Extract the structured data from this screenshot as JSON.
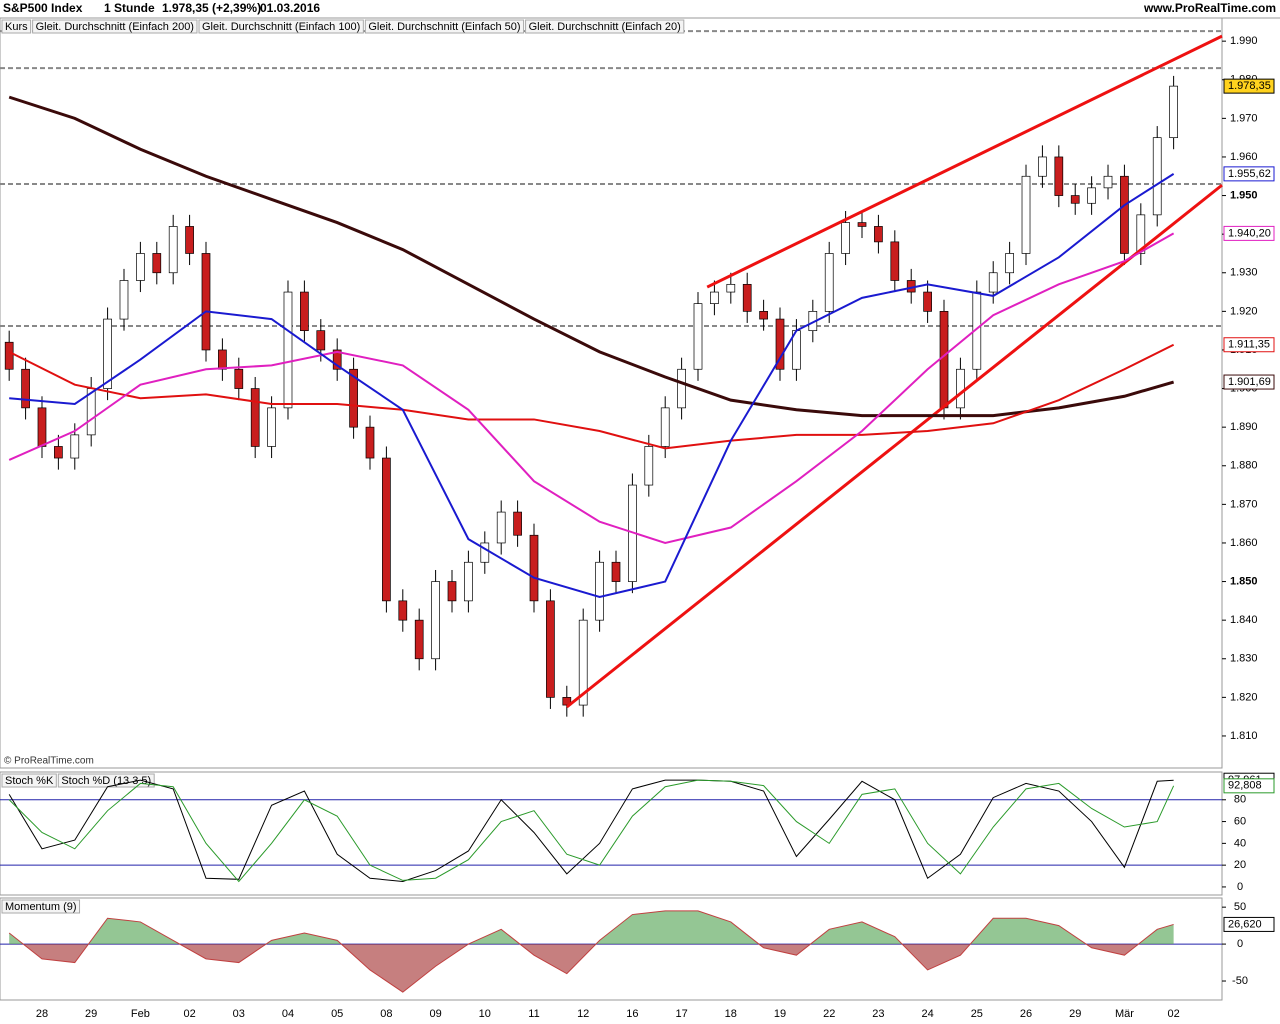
{
  "header": {
    "symbol": "S&P500 Index",
    "interval": "1 Stunde",
    "quote": "1.978,35 (+2,39%)",
    "date": "01.03.2016",
    "site": "www.ProRealTime.com",
    "watermark": "© ProRealTime.com"
  },
  "chart_data": [
    {
      "type": "candlestick",
      "name": "Kurs",
      "color_up": "#ffffff",
      "color_down": "#c81e1e",
      "xlim": [
        -0.56,
        73.95
      ],
      "ylim": [
        1801.7,
        1996
      ],
      "xticks": [
        {
          "value": 2,
          "label": "28"
        },
        {
          "value": 5,
          "label": "29"
        },
        {
          "value": 8,
          "label": "Feb"
        },
        {
          "value": 11,
          "label": "02"
        },
        {
          "value": 14,
          "label": "03"
        },
        {
          "value": 17,
          "label": "04"
        },
        {
          "value": 20,
          "label": "05"
        },
        {
          "value": 23,
          "label": "08"
        },
        {
          "value": 26,
          "label": "09"
        },
        {
          "value": 29,
          "label": "10"
        },
        {
          "value": 32,
          "label": "11"
        },
        {
          "value": 35,
          "label": "12"
        },
        {
          "value": 38,
          "label": "16"
        },
        {
          "value": 41,
          "label": "17"
        },
        {
          "value": 44,
          "label": "18"
        },
        {
          "value": 47,
          "label": "19"
        },
        {
          "value": 50,
          "label": "22"
        },
        {
          "value": 53,
          "label": "23"
        },
        {
          "value": 56,
          "label": "24"
        },
        {
          "value": 59,
          "label": "25"
        },
        {
          "value": 62,
          "label": "26"
        },
        {
          "value": 65,
          "label": "29"
        },
        {
          "value": 68,
          "label": "Mär"
        },
        {
          "value": 71,
          "label": "02"
        }
      ],
      "yticks": [
        {
          "value": 1810,
          "label": "1.810"
        },
        {
          "value": 1820,
          "label": "1.820"
        },
        {
          "value": 1830,
          "label": "1.830"
        },
        {
          "value": 1840,
          "label": "1.840"
        },
        {
          "value": 1850,
          "label": "1.850"
        },
        {
          "value": 1860,
          "label": "1.860"
        },
        {
          "value": 1870,
          "label": "1.870"
        },
        {
          "value": 1880,
          "label": "1.880"
        },
        {
          "value": 1890,
          "label": "1.890"
        },
        {
          "value": 1900,
          "label": "1.900"
        },
        {
          "value": 1910,
          "label": "1.910"
        },
        {
          "value": 1920,
          "label": "1.920"
        },
        {
          "value": 1930,
          "label": "1.930"
        },
        {
          "value": 1940,
          "label": "1.940"
        },
        {
          "value": 1950,
          "label": "1.950"
        },
        {
          "value": 1960,
          "label": "1.960"
        },
        {
          "value": 1970,
          "label": "1.970"
        },
        {
          "value": 1980,
          "label": "1.980"
        },
        {
          "value": 1990,
          "label": "1.990"
        }
      ],
      "open": [
        1912,
        1905,
        1895,
        1885,
        1882,
        1888,
        1900,
        1918,
        1928,
        1935,
        1930,
        1942,
        1935,
        1910,
        1905,
        1900,
        1885,
        1895,
        1925,
        1915,
        1910,
        1905,
        1890,
        1882,
        1845,
        1840,
        1830,
        1850,
        1845,
        1855,
        1860,
        1868,
        1862,
        1845,
        1820,
        1818,
        1840,
        1855,
        1850,
        1875,
        1885,
        1895,
        1905,
        1922,
        1925,
        1927,
        1920,
        1918,
        1905,
        1915,
        1920,
        1935,
        1943,
        1942,
        1938,
        1928,
        1925,
        1920,
        1895,
        1905,
        1925,
        1930,
        1935,
        1955,
        1960,
        1950,
        1948,
        1952,
        1955,
        1935,
        1945,
        1965
      ],
      "high": [
        1915,
        1908,
        1898,
        1888,
        1891,
        1903,
        1921,
        1931,
        1938,
        1938,
        1945,
        1945,
        1938,
        1913,
        1908,
        1903,
        1898,
        1928,
        1928,
        1918,
        1913,
        1908,
        1893,
        1885,
        1848,
        1843,
        1853,
        1853,
        1858,
        1863,
        1871,
        1871,
        1865,
        1848,
        1823,
        1843,
        1858,
        1858,
        1878,
        1888,
        1898,
        1908,
        1925,
        1928,
        1930,
        1930,
        1923,
        1921,
        1918,
        1923,
        1938,
        1946,
        1946,
        1945,
        1941,
        1931,
        1928,
        1923,
        1908,
        1928,
        1933,
        1938,
        1958,
        1963,
        1963,
        1953,
        1955,
        1958,
        1958,
        1948,
        1968,
        1981
      ],
      "low": [
        1902,
        1892,
        1882,
        1879,
        1879,
        1885,
        1897,
        1915,
        1925,
        1927,
        1927,
        1932,
        1907,
        1902,
        1897,
        1882,
        1882,
        1892,
        1912,
        1907,
        1902,
        1887,
        1879,
        1842,
        1837,
        1827,
        1827,
        1842,
        1842,
        1852,
        1857,
        1859,
        1842,
        1817,
        1815,
        1815,
        1837,
        1847,
        1847,
        1872,
        1882,
        1892,
        1902,
        1919,
        1922,
        1917,
        1915,
        1902,
        1902,
        1912,
        1917,
        1932,
        1939,
        1935,
        1925,
        1922,
        1917,
        1892,
        1892,
        1902,
        1922,
        1927,
        1932,
        1952,
        1947,
        1945,
        1945,
        1949,
        1932,
        1932,
        1942,
        1962
      ],
      "close": [
        1905,
        1895,
        1885,
        1882,
        1888,
        1900,
        1918,
        1928,
        1935,
        1930,
        1942,
        1935,
        1910,
        1905,
        1900,
        1885,
        1895,
        1925,
        1915,
        1910,
        1905,
        1890,
        1882,
        1845,
        1840,
        1830,
        1850,
        1845,
        1855,
        1860,
        1868,
        1862,
        1845,
        1820,
        1818,
        1840,
        1855,
        1850,
        1875,
        1885,
        1895,
        1905,
        1922,
        1925,
        1927,
        1920,
        1918,
        1905,
        1915,
        1920,
        1935,
        1943,
        1942,
        1938,
        1928,
        1925,
        1920,
        1895,
        1905,
        1925,
        1930,
        1935,
        1955,
        1960,
        1950,
        1948,
        1952,
        1955,
        1935,
        1945,
        1965,
        1978.35
      ],
      "last_label": "1.978,35",
      "levels": [
        1992.6,
        1983,
        1953,
        1916.2
      ],
      "level_color": "#888888",
      "trendlines": [
        {
          "color": "#ee1111",
          "x": [
            34,
            73.95
          ],
          "values": [
            1817.5,
            1952.7
          ]
        },
        {
          "color": "#ee1111",
          "x": [
            42.56,
            73.95
          ],
          "values": [
            1926.3,
            1991.3
          ]
        }
      ],
      "series_x": [
        0,
        4,
        8,
        12,
        16,
        20,
        24,
        28,
        32,
        36,
        40,
        44,
        48,
        52,
        56,
        60,
        64,
        68,
        71
      ],
      "series": [
        {
          "name": "Gleit. Durchschnitt (Einfach 200)",
          "color": "#3a0a0a",
          "width": 3,
          "values": [
            1975.5,
            1970,
            1962,
            1955,
            1949,
            1943,
            1936,
            1927,
            1918,
            1909.5,
            1903,
            1897,
            1894.5,
            1893,
            1893,
            1893,
            1895,
            1898,
            1901.69
          ],
          "value_label": "1.901,69"
        },
        {
          "name": "Gleit. Durchschnitt (Einfach 100)",
          "color": "#e01010",
          "width": 2,
          "values": [
            1909.5,
            1901,
            1897.5,
            1898.5,
            1896,
            1896,
            1894.5,
            1892,
            1892,
            1889,
            1884.5,
            1886.5,
            1888,
            1888,
            1889,
            1891,
            1897,
            1905,
            1911.35
          ],
          "value_label": "1.911,35"
        },
        {
          "name": "Gleit. Durchschnitt (Einfach 50)",
          "color": "#e020c0",
          "width": 2,
          "values": [
            1881.5,
            1889,
            1901,
            1905,
            1906,
            1909.5,
            1906,
            1894.5,
            1876,
            1865.5,
            1860,
            1864,
            1876,
            1889,
            1905,
            1919,
            1927,
            1933,
            1940.2
          ],
          "value_label": "1.940,20"
        },
        {
          "name": "Gleit. Durchschnitt (Einfach 20)",
          "color": "#1a1ad0",
          "width": 2,
          "values": [
            1897.5,
            1896,
            1907.5,
            1920,
            1918,
            1906,
            1894.5,
            1861,
            1851,
            1846,
            1850,
            1886.5,
            1915,
            1923.5,
            1927,
            1924,
            1934,
            1947.5,
            1955.62
          ],
          "value_label": "1.955,62"
        }
      ]
    },
    {
      "type": "line",
      "xlim": [
        -0.56,
        73.95
      ],
      "ylim": [
        -7.4,
        105.5
      ],
      "yticks": [
        0,
        20,
        40,
        60,
        80
      ],
      "levels": [
        20,
        80
      ],
      "level_color": "#2222aa",
      "x": [
        0,
        2,
        4,
        6,
        8,
        10,
        12,
        14,
        16,
        18,
        20,
        22,
        24,
        26,
        28,
        30,
        32,
        34,
        36,
        38,
        40,
        42,
        44,
        46,
        48,
        50,
        52,
        54,
        56,
        58,
        60,
        62,
        64,
        66,
        68,
        70,
        71
      ],
      "series": [
        {
          "name": "Stoch %K",
          "color": "#000000",
          "width": 1,
          "values": [
            85,
            35,
            43,
            92,
            98,
            90,
            8,
            7,
            75,
            88,
            30,
            8,
            5,
            15,
            33,
            80,
            50,
            12,
            40,
            90,
            98,
            98,
            97,
            88,
            28,
            62,
            97,
            80,
            8,
            30,
            82,
            95,
            88,
            60,
            18,
            97,
            97.961
          ],
          "value_label": "97,961"
        },
        {
          "name": "Stoch %D (13 3 5)",
          "color": "#2a9a2a",
          "width": 1,
          "values": [
            80,
            50,
            35,
            70,
            95,
            92,
            40,
            5,
            40,
            80,
            65,
            20,
            6,
            8,
            25,
            60,
            70,
            30,
            20,
            65,
            92,
            98,
            97,
            93,
            60,
            40,
            85,
            90,
            40,
            12,
            55,
            90,
            95,
            72,
            55,
            60,
            92.808
          ],
          "value_label": "92,808"
        }
      ]
    },
    {
      "type": "area",
      "xlim": [
        -0.56,
        73.95
      ],
      "ylim": [
        -75.7,
        62.4
      ],
      "yticks": [
        50,
        0,
        -50
      ],
      "levels": [
        0
      ],
      "level_color": "#2222aa",
      "fill_up": "#5aa85a",
      "fill_down": "#a83a3a",
      "x": [
        0,
        2,
        4,
        6,
        8,
        10,
        12,
        14,
        16,
        18,
        20,
        22,
        24,
        26,
        28,
        30,
        32,
        34,
        36,
        38,
        40,
        42,
        44,
        46,
        48,
        50,
        52,
        54,
        56,
        58,
        60,
        62,
        64,
        66,
        68,
        70,
        71
      ],
      "series": [
        {
          "name": "Momentum (9)",
          "color": "#c04040",
          "width": 1,
          "values": [
            15,
            -20,
            -25,
            35,
            30,
            5,
            -20,
            -25,
            5,
            15,
            5,
            -35,
            -65,
            -30,
            0,
            20,
            -15,
            -40,
            5,
            40,
            45,
            45,
            30,
            -5,
            -15,
            20,
            30,
            10,
            -35,
            -15,
            35,
            35,
            25,
            -5,
            -15,
            20,
            26.62
          ],
          "value_label": "26,620"
        }
      ]
    }
  ]
}
